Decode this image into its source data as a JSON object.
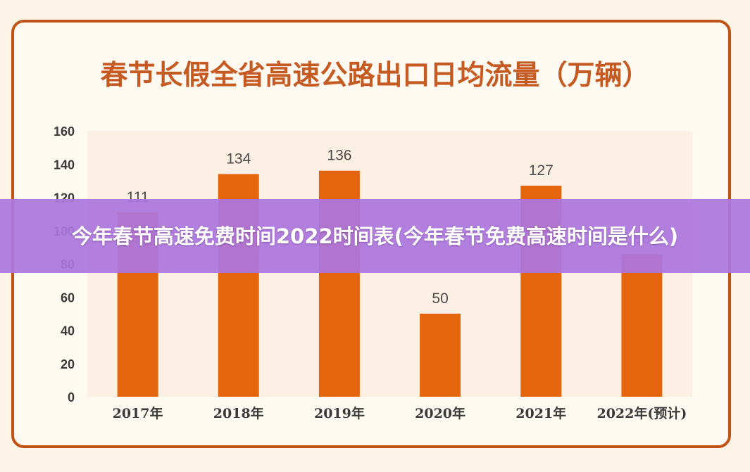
{
  "colors": {
    "bar": "#e4650e",
    "title": "#c55a23",
    "frame": "#c25316",
    "plot_background": "#fcefe3",
    "overlay": "#ac76de"
  },
  "banner": {
    "text": "今年春节高速免费时间2022时间表(今年春节免费高速时间是什么)"
  },
  "chart_data": {
    "type": "bar",
    "title": "春节长假全省高速公路出口日均流量（万辆）",
    "categories": [
      "2017年",
      "2018年",
      "2019年",
      "2020年",
      "2021年",
      "2022年(预计)"
    ],
    "values": [
      111,
      134,
      136,
      50,
      127,
      86
    ],
    "value_labels": [
      "111",
      "134",
      "136",
      "50",
      "127",
      "86"
    ],
    "yticks": [
      0,
      20,
      40,
      60,
      80,
      100,
      120,
      140,
      160
    ],
    "ylim": [
      0,
      160
    ],
    "xlabel": "",
    "ylabel": "",
    "grid": false,
    "legend": "none"
  }
}
